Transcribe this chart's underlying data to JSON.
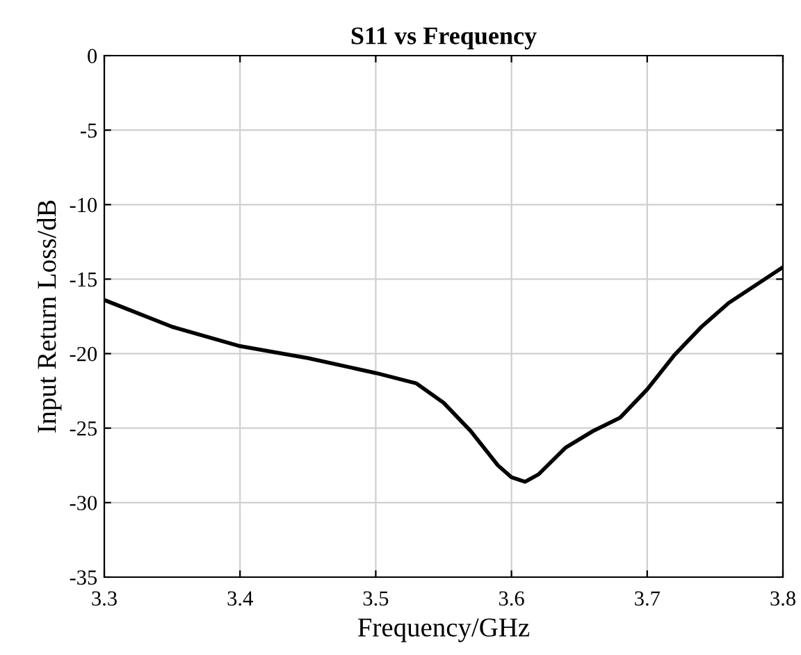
{
  "chart_data": {
    "type": "line",
    "title": "S11 vs Frequency",
    "xlabel": "Frequency/GHz",
    "ylabel": "Input Return Loss/dB",
    "x": [
      3.3,
      3.35,
      3.4,
      3.45,
      3.5,
      3.53,
      3.55,
      3.57,
      3.59,
      3.6,
      3.61,
      3.62,
      3.64,
      3.66,
      3.68,
      3.7,
      3.72,
      3.74,
      3.76,
      3.78,
      3.8
    ],
    "series": [
      {
        "color": "#000000",
        "values": [
          -16.4,
          -18.2,
          -19.5,
          -20.3,
          -21.3,
          -22.0,
          -23.3,
          -25.2,
          -27.5,
          -28.3,
          -28.6,
          -28.1,
          -26.3,
          -25.2,
          -24.3,
          -22.4,
          -20.1,
          -18.2,
          -16.6,
          -15.4,
          -14.2
        ]
      }
    ],
    "xlim": [
      3.3,
      3.8
    ],
    "xticks": [
      {
        "value": 3.3,
        "label": "3.3"
      },
      {
        "value": 3.4,
        "label": "3.4"
      },
      {
        "value": 3.5,
        "label": "3.5"
      },
      {
        "value": 3.6,
        "label": "3.6"
      },
      {
        "value": 3.7,
        "label": "3.7"
      },
      {
        "value": 3.8,
        "label": "3.8"
      }
    ],
    "ylim": [
      -35,
      0
    ],
    "yticks": [
      -35,
      -30,
      -25,
      -20,
      -15,
      -10,
      -5,
      0
    ],
    "grid": true,
    "marker": "none",
    "line_style": "solid"
  }
}
